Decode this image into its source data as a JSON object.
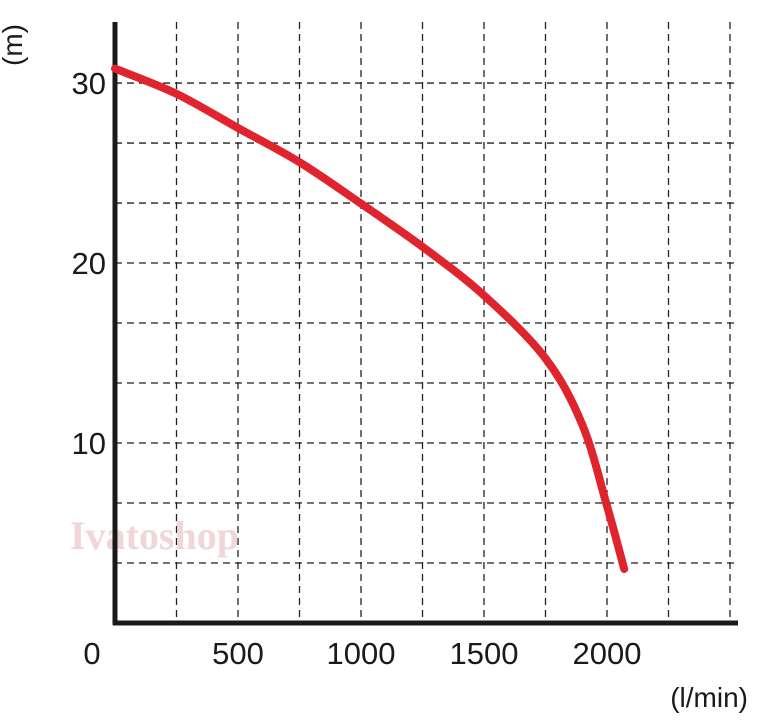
{
  "chart_data": {
    "type": "line",
    "title": "",
    "xlabel": "(l/min)",
    "ylabel": "(m)",
    "xlim": [
      0,
      2500
    ],
    "ylim": [
      0,
      33
    ],
    "x_ticks": [
      500,
      1000,
      1500,
      2000
    ],
    "y_ticks": [
      10,
      20,
      30
    ],
    "origin_label": "0",
    "grid": true,
    "grid_x_step": 250,
    "grid_y_step": 3.333,
    "legend": "none",
    "colors": {
      "curve": "#e0242e",
      "axis": "#1a1a1a",
      "grid": "#222222"
    },
    "series": [
      {
        "x": [
          0,
          250,
          500,
          750,
          1000,
          1250,
          1500,
          1750,
          1900,
          2000,
          2070
        ],
        "y": [
          30.8,
          29.4,
          27.5,
          25.6,
          23.3,
          20.9,
          18.2,
          14.7,
          11.0,
          6.5,
          3.0
        ]
      }
    ]
  },
  "watermark": "Ivatoshop"
}
